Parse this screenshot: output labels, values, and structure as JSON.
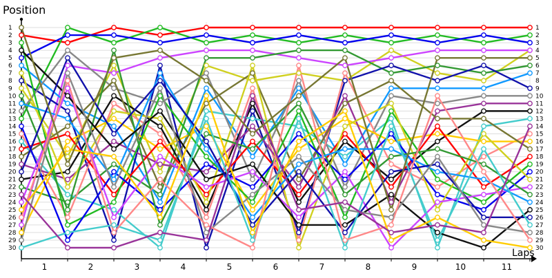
{
  "chart_data": {
    "type": "line",
    "title": "",
    "ylabel": "Position",
    "xlabel": "Laps",
    "x_ticks": [
      1,
      2,
      3,
      4,
      5,
      6,
      7,
      8,
      9,
      10,
      11
    ],
    "y_ticks": [
      1,
      2,
      3,
      4,
      5,
      6,
      7,
      8,
      9,
      10,
      11,
      12,
      13,
      14,
      15,
      16,
      17,
      18,
      19,
      20,
      21,
      22,
      23,
      24,
      25,
      26,
      27,
      28,
      29,
      30
    ],
    "ylim": [
      1,
      30
    ],
    "x_checkpoints": [
      0,
      1,
      2,
      3,
      4,
      5,
      6,
      7,
      8,
      9,
      10,
      11
    ],
    "grid": true,
    "legend": "none",
    "series": [
      {
        "color": "#ff0000",
        "values": [
          2,
          3,
          1,
          2,
          1,
          1,
          1,
          1,
          1,
          1,
          1,
          1
        ]
      },
      {
        "color": "#22bb22",
        "values": [
          13,
          1,
          3,
          1,
          3,
          2,
          3,
          2,
          3,
          2,
          3,
          2
        ]
      },
      {
        "color": "#0000ee",
        "values": [
          5,
          2,
          2,
          3,
          2,
          3,
          2,
          3,
          2,
          3,
          2,
          3
        ]
      },
      {
        "color": "#d0d020",
        "values": [
          9,
          18,
          6,
          20,
          6,
          8,
          7,
          8,
          4,
          7,
          8,
          4
        ]
      },
      {
        "color": "#cc44ff",
        "values": [
          27,
          6,
          7,
          5,
          4,
          4,
          5,
          6,
          5,
          4,
          4,
          4
        ]
      },
      {
        "color": "#339933",
        "values": [
          22,
          24,
          19,
          23,
          5,
          5,
          4,
          4,
          7,
          6,
          7,
          6
        ]
      },
      {
        "color": "#1199ff",
        "values": [
          6,
          11,
          14,
          24,
          9,
          18,
          9,
          19,
          9,
          9,
          9,
          7
        ]
      },
      {
        "color": "#111111",
        "values": [
          21,
          20,
          10,
          14,
          25,
          11,
          24,
          16,
          21,
          16,
          12,
          12
        ]
      },
      {
        "color": "#1111aa",
        "values": [
          8,
          12,
          29,
          6,
          30,
          12,
          28,
          8,
          6,
          8,
          6,
          9
        ]
      },
      {
        "color": "#44cccc",
        "values": [
          16,
          23,
          25,
          30,
          12,
          13,
          14,
          18,
          13,
          30,
          14,
          13
        ]
      },
      {
        "color": "#888888",
        "values": [
          12,
          4,
          9,
          11,
          7,
          21,
          8,
          22,
          10,
          11,
          10,
          10
        ]
      },
      {
        "color": "#ff8888",
        "values": [
          15,
          26,
          11,
          15,
          26,
          9,
          29,
          7,
          19,
          22,
          18,
          15
        ]
      },
      {
        "color": "#ffcc00",
        "values": [
          28,
          16,
          13,
          17,
          14,
          25,
          17,
          13,
          16,
          15,
          16,
          16
        ]
      },
      {
        "color": "#993399",
        "values": [
          19,
          21,
          16,
          19,
          20,
          14,
          22,
          10,
          24,
          12,
          11,
          11
        ]
      },
      {
        "color": "#777733",
        "values": [
          18,
          14,
          8,
          22,
          11,
          7,
          21,
          11,
          8,
          13,
          13,
          17
        ]
      },
      {
        "color": "#ff0000",
        "values": [
          17,
          15,
          23,
          16,
          23,
          16,
          23,
          15,
          22,
          14,
          22,
          18
        ]
      },
      {
        "color": "#22bb22",
        "values": [
          3,
          27,
          24,
          10,
          18,
          24,
          12,
          26,
          12,
          21,
          24,
          19
        ]
      },
      {
        "color": "#0000ee",
        "values": [
          14,
          29,
          20,
          25,
          19,
          22,
          15,
          21,
          15,
          23,
          25,
          20
        ]
      },
      {
        "color": "#d0d020",
        "values": [
          7,
          22,
          12,
          13,
          24,
          6,
          30,
          14,
          11,
          25,
          15,
          21
        ]
      },
      {
        "color": "#cc44ff",
        "values": [
          24,
          9,
          26,
          18,
          22,
          20,
          26,
          20,
          30,
          24,
          23,
          22
        ]
      },
      {
        "color": "#339933",
        "values": [
          10,
          25,
          4,
          27,
          15,
          17,
          11,
          23,
          18,
          17,
          19,
          23
        ]
      },
      {
        "color": "#1199ff",
        "values": [
          11,
          13,
          21,
          7,
          17,
          26,
          19,
          17,
          17,
          20,
          21,
          24
        ]
      },
      {
        "color": "#111111",
        "values": [
          4,
          10,
          17,
          12,
          21,
          19,
          27,
          27,
          23,
          28,
          30,
          25
        ]
      },
      {
        "color": "#1111aa",
        "values": [
          20,
          5,
          15,
          8,
          16,
          27,
          20,
          28,
          20,
          19,
          26,
          26
        ]
      },
      {
        "color": "#44cccc",
        "values": [
          30,
          28,
          27,
          29,
          13,
          29,
          13,
          30,
          14,
          29,
          17,
          27
        ]
      },
      {
        "color": "#888888",
        "values": [
          29,
          7,
          22,
          9,
          28,
          23,
          18,
          25,
          26,
          18,
          27,
          28
        ]
      },
      {
        "color": "#ff8888",
        "values": [
          26,
          8,
          28,
          21,
          27,
          30,
          6,
          29,
          27,
          10,
          20,
          29
        ]
      },
      {
        "color": "#ffcc00",
        "values": [
          25,
          17,
          18,
          26,
          10,
          28,
          16,
          12,
          29,
          26,
          29,
          30
        ]
      },
      {
        "color": "#993399",
        "values": [
          23,
          30,
          30,
          28,
          29,
          10,
          25,
          24,
          28,
          27,
          28,
          14
        ]
      },
      {
        "color": "#777733",
        "values": [
          1,
          19,
          5,
          4,
          8,
          15,
          10,
          5,
          25,
          5,
          5,
          5
        ]
      }
    ]
  }
}
